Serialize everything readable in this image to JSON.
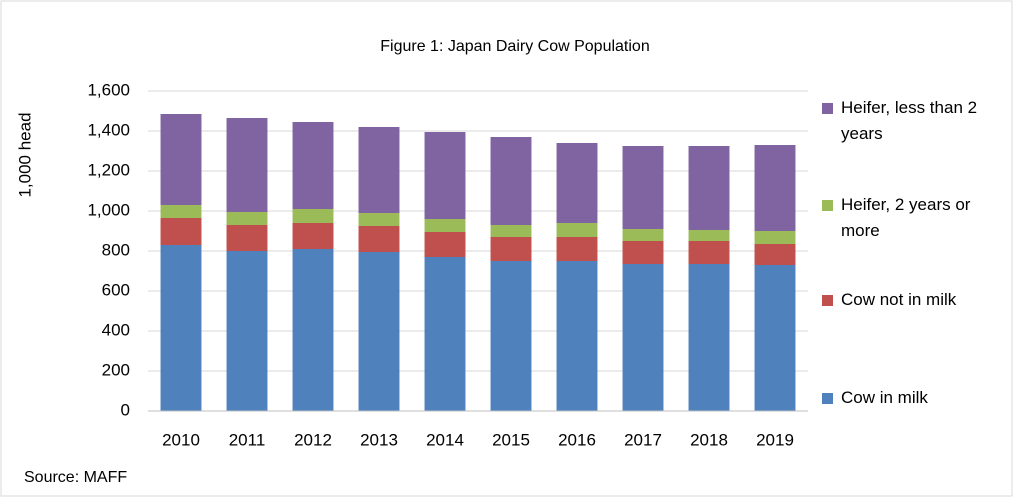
{
  "chart_data": {
    "type": "stacked-bar",
    "title": "Figure 1: Japan Dairy Cow Population",
    "y_label": "1,000 head",
    "source": "Source: MAFF",
    "categories": [
      "2010",
      "2011",
      "2012",
      "2013",
      "2014",
      "2015",
      "2016",
      "2017",
      "2018",
      "2019"
    ],
    "series": [
      {
        "name": "Cow in milk",
        "color": "#4f81bd",
        "values": [
          830,
          800,
          810,
          795,
          770,
          750,
          750,
          735,
          735,
          730
        ]
      },
      {
        "name": "Cow not in milk",
        "color": "#c0504d",
        "values": [
          135,
          130,
          130,
          130,
          125,
          120,
          120,
          115,
          115,
          105
        ]
      },
      {
        "name": "Heifer, 2 years or more",
        "color": "#9bbb59",
        "values": [
          65,
          65,
          70,
          65,
          65,
          60,
          70,
          60,
          55,
          65
        ]
      },
      {
        "name": "Heifer, less than 2 years",
        "color": "#8064a2",
        "values": [
          455,
          470,
          435,
          430,
          435,
          440,
          400,
          415,
          420,
          430
        ]
      }
    ],
    "ylim": [
      0,
      1600
    ],
    "yticks": [
      0,
      200,
      400,
      600,
      800,
      {
        "value": 1000,
        "label": "1,000"
      },
      {
        "value": 1200,
        "label": "1,200"
      },
      {
        "value": 1400,
        "label": "1,400"
      },
      {
        "value": 1600,
        "label": "1,600"
      }
    ],
    "grid": true,
    "legend": "right"
  }
}
